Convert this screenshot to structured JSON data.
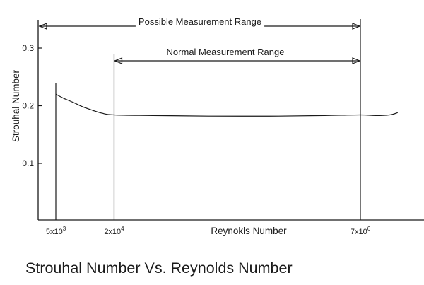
{
  "chart_data": {
    "type": "line",
    "title": "Strouhal Number Vs. Reynolds Number",
    "xlabel": "Reynokls Number",
    "ylabel": "Strouhal Number",
    "x_scale": "log",
    "xlim": [
      3000,
      20000000
    ],
    "ylim": [
      0,
      0.35
    ],
    "y_ticks": [
      0.1,
      0.2,
      0.3
    ],
    "y_tick_labels": [
      "0.1",
      "0.2",
      "0.3"
    ],
    "x_ticks": [
      {
        "value": 5000,
        "base": "5x10",
        "exp": "3"
      },
      {
        "value": 20000,
        "base": "2x10",
        "exp": "4"
      },
      {
        "value": 7000000,
        "base": "7x10",
        "exp": "6"
      }
    ],
    "grid": false,
    "series": [
      {
        "x": [
          5000,
          6000,
          7500,
          9500,
          12000,
          15000,
          20000,
          50000,
          200000,
          1000000,
          3000000,
          7000000,
          10000000,
          14000000,
          17000000
        ],
        "y": [
          0.22,
          0.213,
          0.206,
          0.198,
          0.192,
          0.187,
          0.184,
          0.183,
          0.182,
          0.182,
          0.183,
          0.184,
          0.183,
          0.184,
          0.188
        ]
      }
    ],
    "reference_lines_x": [
      5000,
      20000,
      7000000
    ],
    "annotations": [
      {
        "label": "Possible Measurement Range",
        "from": 5000,
        "to": 7000000
      },
      {
        "label": "Normal Measurement Range",
        "from": 20000,
        "to": 7000000
      }
    ]
  }
}
